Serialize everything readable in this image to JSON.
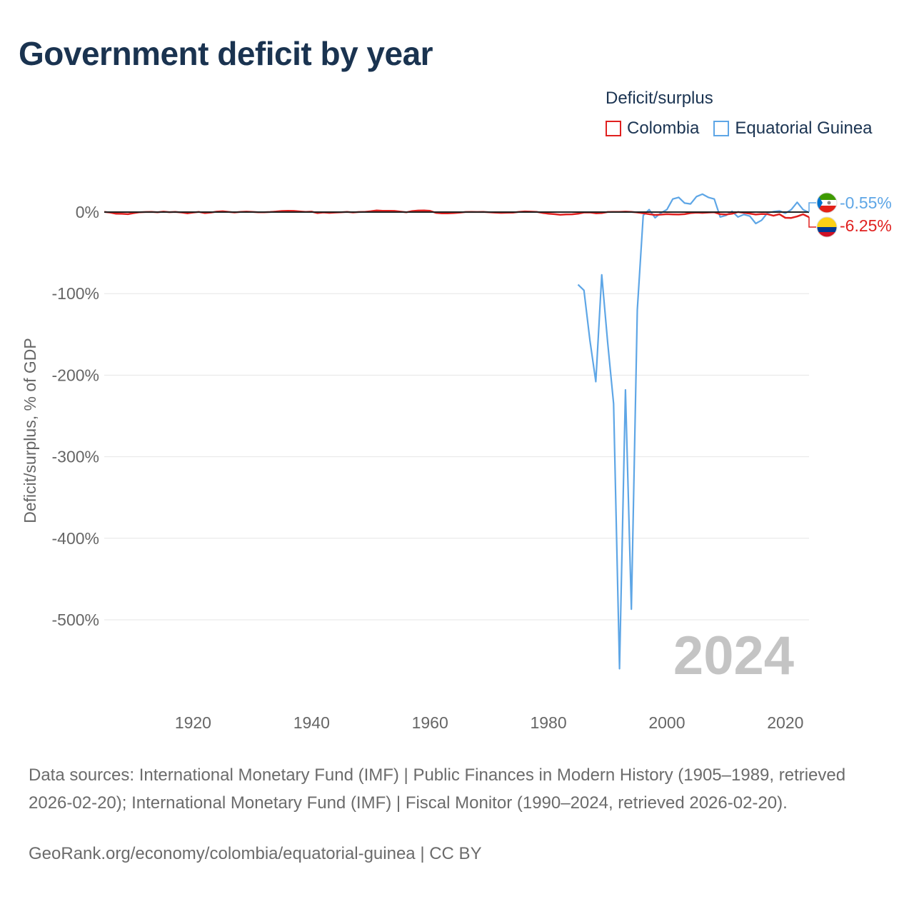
{
  "header": {
    "title": "Government deficit by year"
  },
  "legend": {
    "title": "Deficit/surplus",
    "items": [
      {
        "label": "Colombia",
        "color": "#e0201f"
      },
      {
        "label": "Equatorial Guinea",
        "color": "#5ea6e6"
      }
    ]
  },
  "footer": {
    "sources": "Data sources: International Monetary Fund (IMF) | Public Finances in Modern History (1905–1989, retrieved 2026-02-20); International Monetary Fund (IMF) | Fiscal Monitor (1990–2024, retrieved 2026-02-20).",
    "credit": "GeoRank.org/economy/colombia/equatorial-guinea | CC BY"
  },
  "chart_data": {
    "type": "line",
    "title": "Government deficit by year",
    "xlabel": "",
    "ylabel": "Deficit/surplus, % of GDP",
    "xlim": [
      1905,
      2024
    ],
    "ylim": [
      -600,
      20
    ],
    "x_ticks": [
      1920,
      1940,
      1960,
      1980,
      2000,
      2020
    ],
    "y_ticks": [
      0,
      -100,
      -200,
      -300,
      -400,
      -500
    ],
    "y_tick_labels": [
      "0%",
      "-100%",
      "-200%",
      "-300%",
      "-400%",
      "-500%"
    ],
    "grid": true,
    "watermark_year": "2024",
    "series": [
      {
        "name": "Colombia",
        "color": "#e0201f",
        "end_label": "-6.25%",
        "points": [
          [
            1905,
            0.2
          ],
          [
            1906,
            -0.5
          ],
          [
            1907,
            -2
          ],
          [
            1908,
            -2.1
          ],
          [
            1909,
            -2.5
          ],
          [
            1910,
            -1.2
          ],
          [
            1911,
            -0.2
          ],
          [
            1912,
            0.1
          ],
          [
            1913,
            0.3
          ],
          [
            1914,
            -0.2
          ],
          [
            1915,
            0.5
          ],
          [
            1916,
            -0.1
          ],
          [
            1917,
            0.2
          ],
          [
            1918,
            -0.4
          ],
          [
            1919,
            -1.5
          ],
          [
            1920,
            -0.5
          ],
          [
            1921,
            0.2
          ],
          [
            1922,
            -1.2
          ],
          [
            1923,
            -0.5
          ],
          [
            1924,
            0.5
          ],
          [
            1925,
            1.0
          ],
          [
            1926,
            0.3
          ],
          [
            1927,
            -0.4
          ],
          [
            1928,
            0.2
          ],
          [
            1929,
            0.5
          ],
          [
            1930,
            0.2
          ],
          [
            1931,
            -0.3
          ],
          [
            1932,
            -0.2
          ],
          [
            1933,
            0.1
          ],
          [
            1934,
            0.6
          ],
          [
            1935,
            1.3
          ],
          [
            1936,
            1.5
          ],
          [
            1937,
            1.4
          ],
          [
            1938,
            0.8
          ],
          [
            1939,
            0.2
          ],
          [
            1940,
            0.5
          ],
          [
            1941,
            -1.2
          ],
          [
            1942,
            -0.4
          ],
          [
            1943,
            -1.0
          ],
          [
            1944,
            -0.5
          ],
          [
            1945,
            -0.3
          ],
          [
            1946,
            0.2
          ],
          [
            1947,
            -0.4
          ],
          [
            1948,
            0.1
          ],
          [
            1949,
            0.3
          ],
          [
            1950,
            1.0
          ],
          [
            1951,
            2.0
          ],
          [
            1952,
            1.5
          ],
          [
            1953,
            1.6
          ],
          [
            1954,
            1.4
          ],
          [
            1955,
            0.5
          ],
          [
            1956,
            -0.3
          ],
          [
            1957,
            1.2
          ],
          [
            1958,
            1.8
          ],
          [
            1959,
            2.0
          ],
          [
            1960,
            1.5
          ],
          [
            1961,
            -1.0
          ],
          [
            1962,
            -1.5
          ],
          [
            1963,
            -1.6
          ],
          [
            1964,
            -1.2
          ],
          [
            1965,
            -0.6
          ],
          [
            1966,
            0.1
          ],
          [
            1967,
            0.2
          ],
          [
            1968,
            0.1
          ],
          [
            1969,
            0.3
          ],
          [
            1970,
            -0.2
          ],
          [
            1971,
            -0.7
          ],
          [
            1972,
            -1.0
          ],
          [
            1973,
            -0.8
          ],
          [
            1974,
            -0.6
          ],
          [
            1975,
            0.2
          ],
          [
            1976,
            0.8
          ],
          [
            1977,
            0.5
          ],
          [
            1978,
            0.3
          ],
          [
            1979,
            -1.0
          ],
          [
            1980,
            -2.0
          ],
          [
            1981,
            -2.5
          ],
          [
            1982,
            -3.2
          ],
          [
            1983,
            -2.8
          ],
          [
            1984,
            -2.7
          ],
          [
            1985,
            -2.0
          ],
          [
            1986,
            -0.5
          ],
          [
            1987,
            -0.4
          ],
          [
            1988,
            -1.5
          ],
          [
            1989,
            -1.2
          ],
          [
            1990,
            0.1
          ],
          [
            1991,
            0.3
          ],
          [
            1992,
            0.2
          ],
          [
            1993,
            0.5
          ],
          [
            1994,
            0.3
          ],
          [
            1995,
            -0.4
          ],
          [
            1996,
            -1.5
          ],
          [
            1997,
            -2.5
          ],
          [
            1998,
            -3.5
          ],
          [
            1999,
            -3.1
          ],
          [
            2000,
            -2.5
          ],
          [
            2001,
            -2.8
          ],
          [
            2002,
            -3.0
          ],
          [
            2003,
            -2.5
          ],
          [
            2004,
            -1.2
          ],
          [
            2005,
            -0.6
          ],
          [
            2006,
            -1.0
          ],
          [
            2007,
            -0.5
          ],
          [
            2008,
            -0.3
          ],
          [
            2009,
            -2.5
          ],
          [
            2010,
            -3.0
          ],
          [
            2011,
            -2.0
          ],
          [
            2012,
            0.1
          ],
          [
            2013,
            -0.9
          ],
          [
            2014,
            -1.8
          ],
          [
            2015,
            -3.0
          ],
          [
            2016,
            -2.3
          ],
          [
            2017,
            -2.5
          ],
          [
            2018,
            -4.5
          ],
          [
            2019,
            -2.5
          ],
          [
            2020,
            -7.0
          ],
          [
            2021,
            -7.2
          ],
          [
            2022,
            -5.3
          ],
          [
            2023,
            -2.7
          ],
          [
            2024,
            -6.25
          ]
        ]
      },
      {
        "name": "Equatorial Guinea",
        "color": "#5ea6e6",
        "end_label": "-0.55%",
        "points": [
          [
            1985,
            -89
          ],
          [
            1986,
            -96
          ],
          [
            1987,
            -157
          ],
          [
            1988,
            -208
          ],
          [
            1989,
            -77
          ],
          [
            1990,
            -160
          ],
          [
            1991,
            -235
          ],
          [
            1992,
            -560
          ],
          [
            1993,
            -218
          ],
          [
            1994,
            -487
          ],
          [
            1995,
            -120
          ],
          [
            1996,
            -4
          ],
          [
            1997,
            3
          ],
          [
            1998,
            -7
          ],
          [
            1999,
            -1
          ],
          [
            2000,
            3
          ],
          [
            2001,
            16
          ],
          [
            2002,
            18
          ],
          [
            2003,
            11
          ],
          [
            2004,
            10
          ],
          [
            2005,
            19
          ],
          [
            2006,
            22
          ],
          [
            2007,
            18
          ],
          [
            2008,
            16
          ],
          [
            2009,
            -6
          ],
          [
            2010,
            -4
          ],
          [
            2011,
            1
          ],
          [
            2012,
            -6
          ],
          [
            2013,
            -3
          ],
          [
            2014,
            -5
          ],
          [
            2015,
            -14
          ],
          [
            2016,
            -10
          ],
          [
            2017,
            -1
          ],
          [
            2018,
            0.5
          ],
          [
            2019,
            1.5
          ],
          [
            2020,
            -1.5
          ],
          [
            2021,
            3
          ],
          [
            2022,
            12
          ],
          [
            2023,
            3
          ],
          [
            2024,
            -0.55
          ]
        ]
      }
    ]
  }
}
